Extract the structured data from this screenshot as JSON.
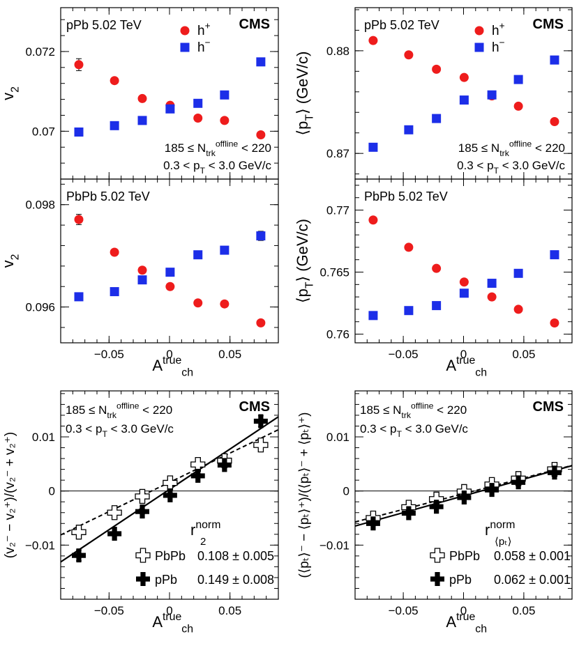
{
  "chart_data": [
    {
      "id": "p1",
      "type": "scatter",
      "system_label": "pPb 5.02 TeV",
      "experiment": "CMS",
      "ylabel_main": "v",
      "ylabel_sub": "2",
      "xlabel_main": "",
      "xlabel_sup": "",
      "xlabel_sub": "",
      "xlim": [
        -0.09,
        0.09
      ],
      "ylim": [
        0.0688,
        0.0731
      ],
      "yticks": [
        0.07,
        0.072
      ],
      "ytick_labels": [
        "0.07",
        "0.072"
      ],
      "xticks": [
        -0.05,
        0,
        0.05
      ],
      "xtick_labels": [],
      "legend": [
        {
          "name": "h",
          "sup": "+",
          "marker": "circle",
          "color": "#ee1c1c"
        },
        {
          "name": "h",
          "sup": "−",
          "marker": "square",
          "color": "#1c2ee8"
        }
      ],
      "annotations": [
        {
          "pre": "185 ≤ N",
          "sub": "trk",
          "sup": "offline",
          "post": " < 220"
        },
        {
          "pre": "0.3 < p",
          "sub": "T",
          "sup": "",
          "post": " < 3.0 GeV/c"
        }
      ],
      "x": [
        -0.075,
        -0.0455,
        -0.0225,
        0.0005,
        0.0235,
        0.0455,
        0.0755
      ],
      "series": [
        {
          "name": "h+",
          "marker": "circle",
          "color": "#ee1c1c",
          "values": [
            0.07167,
            0.07127,
            0.07082,
            0.07065,
            0.07033,
            0.07027,
            0.06991
          ],
          "errors": [
            0.00015,
            3e-05,
            3e-05,
            3e-05,
            3e-05,
            3e-05,
            5e-05
          ]
        },
        {
          "name": "h-",
          "marker": "square",
          "color": "#1c2ee8",
          "values": [
            0.06998,
            0.07014,
            0.07027,
            0.07056,
            0.0707,
            0.07091,
            0.07174
          ],
          "errors": [
            8e-05,
            3e-05,
            3e-05,
            3e-05,
            3e-05,
            3e-05,
            0.0001
          ]
        }
      ]
    },
    {
      "id": "p2",
      "type": "scatter",
      "system_label": "pPb 5.02 TeV",
      "experiment": "CMS",
      "ylabel_main": "⟨p",
      "ylabel_sub": "T",
      "ylabel_post": "⟩ (GeV/c)",
      "xlabel_main": "",
      "xlabel_sup": "",
      "xlabel_sub": "",
      "xlim": [
        -0.09,
        0.09
      ],
      "ylim": [
        0.8675,
        0.8842
      ],
      "yticks": [
        0.87,
        0.88
      ],
      "ytick_labels": [
        "0.87",
        "0.88"
      ],
      "xticks": [
        -0.05,
        0,
        0.05
      ],
      "xtick_labels": [],
      "legend": [
        {
          "name": "h",
          "sup": "+",
          "marker": "circle",
          "color": "#ee1c1c"
        },
        {
          "name": "h",
          "sup": "−",
          "marker": "square",
          "color": "#1c2ee8"
        }
      ],
      "annotations": [
        {
          "pre": "185 ≤ N",
          "sub": "trk",
          "sup": "offline",
          "post": " < 220"
        },
        {
          "pre": "0.3 < p",
          "sub": "T",
          "sup": "",
          "post": " < 3.0 GeV/c"
        }
      ],
      "x": [
        -0.075,
        -0.0455,
        -0.0225,
        0.0005,
        0.0235,
        0.0455,
        0.0755
      ],
      "series": [
        {
          "name": "h+",
          "marker": "circle",
          "color": "#ee1c1c",
          "values": [
            0.881,
            0.8796,
            0.8782,
            0.8774,
            0.8756,
            0.8746,
            0.8731
          ],
          "errors": [
            0,
            0,
            0,
            0,
            0,
            0,
            0
          ]
        },
        {
          "name": "h-",
          "marker": "square",
          "color": "#1c2ee8",
          "values": [
            0.8706,
            0.8723,
            0.8734,
            0.8752,
            0.8757,
            0.8772,
            0.8791
          ],
          "errors": [
            0,
            0,
            0,
            0,
            0,
            0,
            0
          ]
        }
      ]
    },
    {
      "id": "p3",
      "type": "scatter",
      "system_label": "PbPb 5.02 TeV",
      "experiment": "",
      "ylabel_main": "v",
      "ylabel_sub": "2",
      "xlabel_main": "A",
      "xlabel_sup": "true",
      "xlabel_sub": "ch",
      "xlim": [
        -0.09,
        0.09
      ],
      "ylim": [
        0.0953,
        0.0985
      ],
      "yticks": [
        0.096,
        0.098
      ],
      "ytick_labels": [
        "0.096",
        "0.098"
      ],
      "xticks": [
        -0.05,
        0,
        0.05
      ],
      "xtick_labels": [
        "−0.05",
        "0",
        "0.05"
      ],
      "legend": [],
      "annotations": [],
      "x": [
        -0.075,
        -0.0455,
        -0.0225,
        0.0005,
        0.0235,
        0.0455,
        0.0755
      ],
      "series": [
        {
          "name": "h+",
          "marker": "circle",
          "color": "#ee1c1c",
          "values": [
            0.09771,
            0.09707,
            0.09672,
            0.0964,
            0.09608,
            0.09606,
            0.09569
          ],
          "errors": [
            0.0001,
            2e-05,
            2e-05,
            2e-05,
            2e-05,
            2e-05,
            6e-05
          ]
        },
        {
          "name": "h-",
          "marker": "square",
          "color": "#1c2ee8",
          "values": [
            0.0962,
            0.0963,
            0.09653,
            0.09668,
            0.09702,
            0.09711,
            0.09739
          ],
          "errors": [
            7e-05,
            2e-05,
            2e-05,
            2e-05,
            2e-05,
            2e-05,
            9e-05
          ]
        }
      ]
    },
    {
      "id": "p4",
      "type": "scatter",
      "system_label": "PbPb 5.02 TeV",
      "experiment": "",
      "ylabel_main": "⟨p",
      "ylabel_sub": "T",
      "ylabel_post": "⟩ (GeV/c)",
      "xlabel_main": "A",
      "xlabel_sup": "true",
      "xlabel_sub": "ch",
      "xlim": [
        -0.09,
        0.09
      ],
      "ylim": [
        0.7593,
        0.7725
      ],
      "yticks": [
        0.76,
        0.765,
        0.77
      ],
      "ytick_labels": [
        "0.76",
        "0.765",
        "0.77"
      ],
      "xticks": [
        -0.05,
        0,
        0.05
      ],
      "xtick_labels": [
        "−0.05",
        "0",
        "0.05"
      ],
      "legend": [],
      "annotations": [],
      "x": [
        -0.075,
        -0.0455,
        -0.0225,
        0.0005,
        0.0235,
        0.0455,
        0.0755
      ],
      "series": [
        {
          "name": "h+",
          "marker": "circle",
          "color": "#ee1c1c",
          "values": [
            0.7692,
            0.767,
            0.7653,
            0.7642,
            0.763,
            0.762,
            0.7609
          ],
          "errors": [
            0,
            0,
            0,
            0,
            0,
            0,
            0
          ]
        },
        {
          "name": "h-",
          "marker": "square",
          "color": "#1c2ee8",
          "values": [
            0.7615,
            0.7619,
            0.7623,
            0.7633,
            0.7641,
            0.7649,
            0.7664
          ],
          "errors": [
            0,
            0,
            0,
            0,
            0,
            0,
            0
          ]
        }
      ]
    },
    {
      "id": "p5",
      "type": "scatter",
      "system_label": "",
      "experiment": "CMS",
      "ylabel_text": "(v₂⁻ − v₂⁺)/(v₂⁻ + v₂⁺)",
      "xlabel_main": "A",
      "xlabel_sup": "true",
      "xlabel_sub": "ch",
      "xlim": [
        -0.09,
        0.09
      ],
      "ylim": [
        -0.02,
        0.0185
      ],
      "yticks": [
        -0.01,
        0,
        0.01
      ],
      "ytick_labels": [
        "−0.01",
        "0",
        "0.01"
      ],
      "xticks": [
        -0.05,
        0,
        0.05
      ],
      "xtick_labels": [
        "−0.05",
        "0",
        "0.05"
      ],
      "annotations": [
        {
          "pre": "185 ≤ N",
          "sub": "trk",
          "sup": "offline",
          "post": " < 220"
        },
        {
          "pre": "0.3 < p",
          "sub": "T",
          "sup": "",
          "post": " < 3.0 GeV/c"
        }
      ],
      "r_label": {
        "main": "r",
        "sub": "2",
        "sup": "norm"
      },
      "legend": [
        {
          "name": "PbPb",
          "value": "0.108 ± 0.005",
          "marker": "cross-open"
        },
        {
          "name": "pPb",
          "value": "0.149 ± 0.008",
          "marker": "cross-filled"
        }
      ],
      "x": [
        -0.075,
        -0.0455,
        -0.0225,
        0.0005,
        0.0235,
        0.0455,
        0.0755
      ],
      "series": [
        {
          "name": "PbPb",
          "marker": "cross-open",
          "values": [
            -0.0076,
            -0.004,
            -0.001,
            0.0015,
            0.0049,
            0.0056,
            0.0085
          ],
          "errors": [
            0.0008,
            0.0004,
            0.0004,
            0.0004,
            0.0004,
            0.0004,
            0.0008
          ]
        },
        {
          "name": "pPb",
          "marker": "cross-filled",
          "values": [
            -0.0119,
            -0.0079,
            -0.0038,
            -0.0008,
            0.0028,
            0.0048,
            0.0129
          ],
          "errors": [
            0.001,
            0.0004,
            0.0004,
            0.0004,
            0.0004,
            0.0004,
            0.001
          ]
        }
      ],
      "fits": [
        {
          "name": "pPb",
          "slope": 0.149,
          "intercept": 0.0003,
          "style": "solid"
        },
        {
          "name": "PbPb",
          "slope": 0.108,
          "intercept": 0.0016,
          "style": "dashed"
        }
      ]
    },
    {
      "id": "p6",
      "type": "scatter",
      "system_label": "",
      "experiment": "CMS",
      "ylabel_text": "(⟨pₜ⟩⁻ − ⟨pₜ⟩⁺)/(⟨pₜ⟩⁻ + ⟨pₜ⟩⁺)",
      "xlabel_main": "A",
      "xlabel_sup": "true",
      "xlabel_sub": "ch",
      "xlim": [
        -0.09,
        0.09
      ],
      "ylim": [
        -0.02,
        0.0185
      ],
      "yticks": [
        -0.01,
        0,
        0.01
      ],
      "ytick_labels": [
        "−0.01",
        "0",
        "0.01"
      ],
      "xticks": [
        -0.05,
        0,
        0.05
      ],
      "xtick_labels": [
        "−0.05",
        "0",
        "0.05"
      ],
      "annotations": [
        {
          "pre": "185 ≤ N",
          "sub": "trk",
          "sup": "offline",
          "post": " < 220"
        },
        {
          "pre": "0.3 < p",
          "sub": "T",
          "sup": "",
          "post": " < 3.0 GeV/c"
        }
      ],
      "r_label": {
        "main": "r",
        "sub": "⟨pₜ⟩",
        "sup": "norm"
      },
      "legend": [
        {
          "name": "PbPb",
          "value": "0.058 ± 0.001",
          "marker": "cross-open"
        },
        {
          "name": "pPb",
          "value": "0.062 ± 0.001",
          "marker": "cross-filled"
        }
      ],
      "x": [
        -0.075,
        -0.0455,
        -0.0225,
        0.0005,
        0.0235,
        0.0455,
        0.0755
      ],
      "series": [
        {
          "name": "PbPb",
          "marker": "cross-open",
          "values": [
            -0.005,
            -0.003,
            -0.0015,
            -0.0001,
            0.0012,
            0.0023,
            0.004
          ],
          "errors": [
            0.0004,
            0.0002,
            0.0002,
            0.0002,
            0.0002,
            0.0002,
            0.0004
          ]
        },
        {
          "name": "pPb",
          "marker": "cross-filled",
          "values": [
            -0.006,
            -0.0041,
            -0.0029,
            -0.0012,
            0.0002,
            0.0016,
            0.0034
          ],
          "errors": [
            0.0004,
            0.0002,
            0.0002,
            0.0002,
            0.0002,
            0.0002,
            0.0004
          ]
        }
      ],
      "fits": [
        {
          "name": "pPb",
          "slope": 0.062,
          "intercept": -0.0009,
          "style": "solid"
        },
        {
          "name": "PbPb",
          "slope": 0.058,
          "intercept": -0.0005,
          "style": "dashed"
        }
      ]
    }
  ]
}
